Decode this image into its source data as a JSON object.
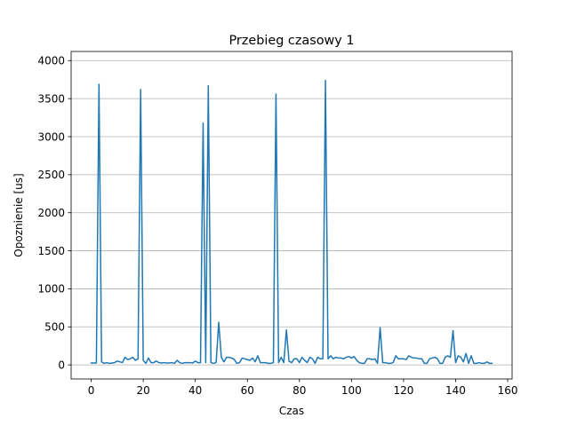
{
  "chart_data": {
    "type": "line",
    "title": "Przebieg czasowy 1",
    "xlabel": "Czas",
    "ylabel": "Opoznienie [us]",
    "xlim": [
      -7.7,
      161.7
    ],
    "ylim": [
      -185,
      4120
    ],
    "xticks": [
      0,
      20,
      40,
      60,
      80,
      100,
      120,
      140,
      160
    ],
    "yticks": [
      0,
      500,
      1000,
      1500,
      2000,
      2500,
      3000,
      3500,
      4000
    ],
    "grid": "y",
    "line_color": "#1f77b4",
    "series": [
      {
        "x": [
          0,
          1,
          2,
          3,
          4,
          5,
          6,
          7,
          8,
          9,
          10,
          11,
          12,
          13,
          14,
          15,
          16,
          17,
          18,
          19,
          20,
          21,
          22,
          23,
          24,
          25,
          26,
          27,
          28,
          29,
          30,
          31,
          32,
          33,
          34,
          35,
          36,
          37,
          38,
          39,
          40,
          41,
          42,
          43,
          44,
          45,
          46,
          47,
          48,
          49,
          50,
          51,
          52,
          53,
          54,
          55,
          56,
          57,
          58,
          59,
          60,
          61,
          62,
          63,
          64,
          65,
          66,
          67,
          68,
          69,
          70,
          71,
          72,
          73,
          74,
          75,
          76,
          77,
          78,
          79,
          80,
          81,
          82,
          83,
          84,
          85,
          86,
          87,
          88,
          89,
          90,
          91,
          92,
          93,
          94,
          95,
          96,
          97,
          98,
          99,
          100,
          101,
          102,
          103,
          104,
          105,
          106,
          107,
          108,
          109,
          110,
          111,
          112,
          113,
          114,
          115,
          116,
          117,
          118,
          119,
          120,
          121,
          122,
          123,
          124,
          125,
          126,
          127,
          128,
          129,
          130,
          131,
          132,
          133,
          134,
          135,
          136,
          137,
          138,
          139,
          140,
          141,
          142,
          143,
          144,
          145,
          146,
          147,
          148,
          149,
          150,
          151,
          152,
          153,
          154
        ],
        "values": [
          25,
          25,
          25,
          3690,
          40,
          20,
          30,
          20,
          25,
          30,
          50,
          40,
          30,
          100,
          70,
          80,
          100,
          60,
          80,
          3620,
          60,
          20,
          90,
          30,
          30,
          50,
          30,
          25,
          30,
          25,
          25,
          30,
          20,
          60,
          30,
          20,
          30,
          30,
          30,
          25,
          50,
          30,
          30,
          3180,
          30,
          3670,
          30,
          20,
          30,
          560,
          100,
          40,
          100,
          100,
          90,
          70,
          20,
          30,
          90,
          80,
          70,
          60,
          90,
          40,
          120,
          30,
          30,
          30,
          20,
          20,
          30,
          3560,
          30,
          100,
          30,
          460,
          50,
          30,
          80,
          80,
          30,
          100,
          60,
          30,
          100,
          80,
          20,
          100,
          80,
          80,
          3740,
          80,
          120,
          80,
          100,
          90,
          90,
          80,
          100,
          110,
          90,
          110,
          60,
          30,
          20,
          20,
          80,
          80,
          70,
          80,
          20,
          490,
          30,
          30,
          20,
          20,
          30,
          120,
          80,
          80,
          80,
          70,
          120,
          100,
          90,
          90,
          80,
          80,
          20,
          20,
          80,
          90,
          100,
          80,
          20,
          20,
          100,
          120,
          100,
          450,
          30,
          120,
          100,
          40,
          150,
          20,
          120,
          20,
          20,
          30,
          20,
          20,
          40,
          20,
          20
        ]
      }
    ]
  }
}
